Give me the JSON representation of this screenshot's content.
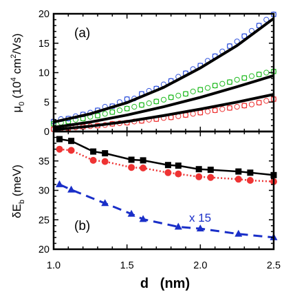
{
  "chart_data": [
    {
      "type": "scatter",
      "panel_label": "(a)",
      "ylabel": "μ0  (10^4 cm^2/Vs)",
      "ylim": [
        0,
        20
      ],
      "yticks": [
        0,
        5,
        10,
        15,
        20
      ],
      "xlim": [
        1.0,
        2.5
      ],
      "grid": false,
      "series": [
        {
          "color": "#3355dd",
          "fit": {
            "x": [
              1.0,
              1.25,
              1.5,
              1.75,
              2.0,
              2.25,
              2.5
            ],
            "y": [
              1.6,
              3.0,
              4.9,
              7.5,
              10.8,
              14.6,
              19.2
            ]
          },
          "x": [
            1.0,
            1.05,
            1.1,
            1.15,
            1.2,
            1.25,
            1.3,
            1.35,
            1.4,
            1.45,
            1.5,
            1.55,
            1.6,
            1.65,
            1.7,
            1.75,
            1.8,
            1.85,
            1.9,
            1.95,
            2.0,
            2.05,
            2.1,
            2.15,
            2.2,
            2.25,
            2.3,
            2.35,
            2.4,
            2.45,
            2.5
          ],
          "y": [
            1.7,
            2.1,
            2.2,
            2.6,
            2.9,
            3.2,
            3.6,
            4.2,
            4.3,
            5.0,
            5.5,
            5.6,
            6.4,
            6.9,
            7.3,
            8.0,
            8.6,
            9.3,
            9.9,
            10.6,
            11.2,
            12.0,
            12.8,
            13.6,
            14.5,
            15.3,
            16.2,
            17.1,
            18.0,
            19.0,
            19.9
          ]
        },
        {
          "color": "#22bb22",
          "fit": {
            "x": [
              1.0,
              1.25,
              1.5,
              1.75,
              2.0,
              2.25,
              2.5
            ],
            "y": [
              0.7,
              1.6,
              2.8,
              4.2,
              5.8,
              7.6,
              9.5
            ]
          },
          "x": [
            1.0,
            1.05,
            1.1,
            1.15,
            1.2,
            1.25,
            1.3,
            1.35,
            1.4,
            1.45,
            1.5,
            1.55,
            1.6,
            1.65,
            1.7,
            1.75,
            1.8,
            1.85,
            1.9,
            1.95,
            2.0,
            2.05,
            2.1,
            2.15,
            2.2,
            2.25,
            2.3,
            2.35,
            2.4,
            2.45,
            2.5
          ],
          "y": [
            1.3,
            1.5,
            1.7,
            2.0,
            2.2,
            2.5,
            2.7,
            3.0,
            3.3,
            3.6,
            3.9,
            4.2,
            4.5,
            4.8,
            5.1,
            5.4,
            5.8,
            6.1,
            6.4,
            6.8,
            7.1,
            7.4,
            7.8,
            8.1,
            8.4,
            8.8,
            9.1,
            9.4,
            9.7,
            10.0,
            10.2
          ]
        },
        {
          "color": "#ee3333",
          "fit": {
            "x": [
              1.0,
              1.25,
              1.5,
              1.75,
              2.0,
              2.25,
              2.5
            ],
            "y": [
              0.3,
              0.9,
              1.7,
              2.7,
              3.8,
              5.0,
              6.3
            ]
          },
          "x": [
            1.0,
            1.05,
            1.1,
            1.15,
            1.2,
            1.25,
            1.3,
            1.35,
            1.4,
            1.45,
            1.5,
            1.55,
            1.6,
            1.65,
            1.7,
            1.75,
            1.8,
            1.85,
            1.9,
            1.95,
            2.0,
            2.05,
            2.1,
            2.15,
            2.2,
            2.25,
            2.3,
            2.35,
            2.4,
            2.45,
            2.5
          ],
          "y": [
            0.4,
            0.5,
            0.6,
            0.7,
            0.8,
            0.9,
            1.0,
            1.1,
            1.3,
            1.4,
            1.5,
            1.7,
            1.8,
            2.0,
            2.1,
            2.3,
            2.4,
            2.6,
            2.8,
            3.0,
            3.2,
            3.4,
            3.6,
            3.8,
            4.0,
            4.2,
            4.4,
            4.6,
            4.9,
            5.2,
            5.5
          ]
        }
      ]
    },
    {
      "type": "line",
      "panel_label": "(b)",
      "ylabel": "δEb  (meV)",
      "ylim": [
        20,
        40
      ],
      "yticks": [
        20,
        25,
        30,
        35
      ],
      "xlabel": "d   (nm)",
      "xlim": [
        1.0,
        2.5
      ],
      "xticks": [
        "1.0",
        "1.5",
        "2.0",
        "2.5"
      ],
      "annotation": "x 15",
      "grid": false,
      "series": [
        {
          "color": "#000000",
          "marker": "square",
          "line": "solid",
          "x": [
            1.04,
            1.12,
            1.27,
            1.35,
            1.53,
            1.61,
            1.78,
            1.85,
            1.99,
            2.07,
            2.26,
            2.34,
            2.5
          ],
          "y": [
            38.7,
            38.4,
            36.6,
            36.3,
            35.2,
            35.1,
            34.3,
            34.2,
            33.6,
            33.5,
            33.2,
            33.0,
            32.6
          ]
        },
        {
          "color": "#ee3333",
          "marker": "circle",
          "line": "dotted",
          "x": [
            1.04,
            1.12,
            1.27,
            1.35,
            1.53,
            1.61,
            1.78,
            1.85,
            1.99,
            2.07,
            2.26,
            2.34,
            2.5
          ],
          "y": [
            37.0,
            36.8,
            35.1,
            34.9,
            33.9,
            33.8,
            33.0,
            32.8,
            32.3,
            32.2,
            31.9,
            31.7,
            31.5
          ]
        },
        {
          "color": "#1a2fc8",
          "marker": "triangle",
          "line": "dashed",
          "x": [
            1.04,
            1.12,
            1.35,
            1.53,
            1.61,
            1.85,
            2.0,
            2.26,
            2.5
          ],
          "y": [
            31.0,
            30.1,
            27.8,
            26.0,
            25.1,
            23.8,
            23.5,
            22.6,
            22.0
          ]
        }
      ]
    }
  ]
}
